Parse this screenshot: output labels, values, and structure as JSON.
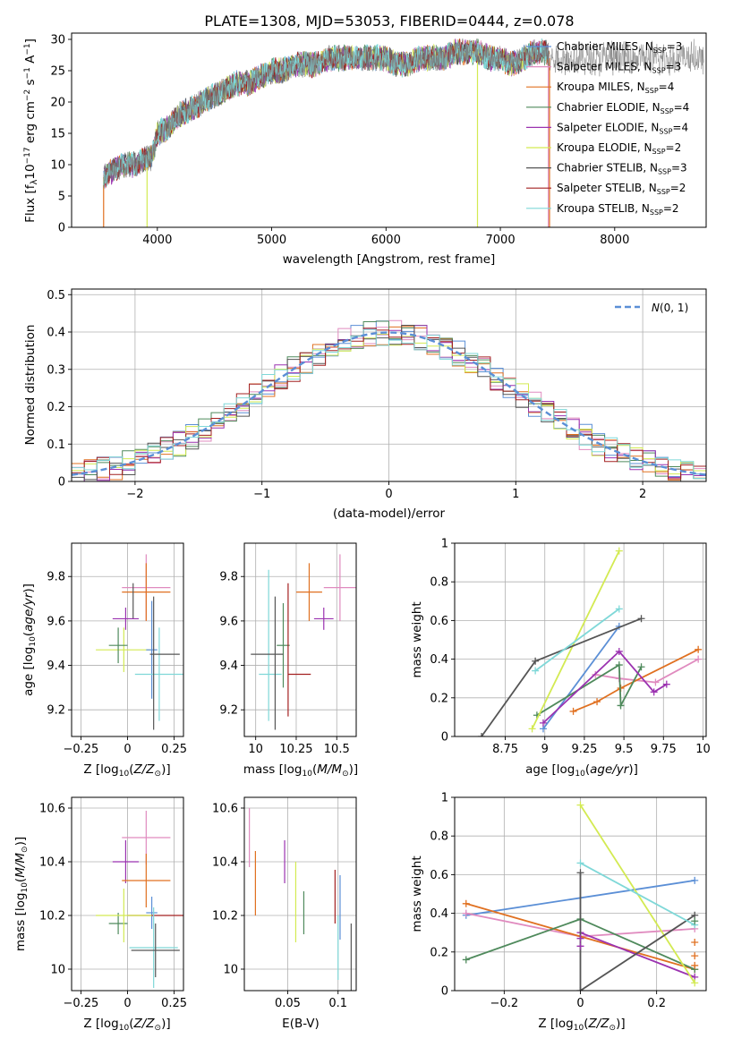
{
  "page": {
    "title": "PLATE=1308, MJD=53053, FIBERID=0444, z=0.078",
    "colors": {
      "Chabrier MILES": "#5b8fd6",
      "Salpeter MILES": "#e08bbf",
      "Kroupa MILES": "#e07020",
      "Chabrier ELODIE": "#4f8a5c",
      "Salpeter ELODIE": "#9b32b0",
      "Kroupa ELODIE": "#d3ea52",
      "Chabrier STELIB": "#555555",
      "Salpeter STELIB": "#a32020",
      "Kroupa STELIB": "#7fd8d8"
    }
  },
  "chart_data": [
    {
      "id": "spectrum",
      "type": "line",
      "title": "PLATE=1308, MJD=53053, FIBERID=0444, z=0.078",
      "xlabel": "wavelength [Angstrom, rest frame]",
      "ylabel": "Flux [f_λ10^-17 erg cm^-2 s^-1 A^-1]",
      "xlim": [
        3250,
        8800
      ],
      "ylim": [
        0,
        31
      ],
      "xticks": [
        4000,
        5000,
        6000,
        7000,
        8000
      ],
      "yticks": [
        0,
        5,
        10,
        15,
        20,
        25,
        30
      ],
      "grid": false,
      "legend_placement": "top-right",
      "envelope": {
        "x": [
          3530,
          3600,
          3700,
          3800,
          3900,
          3950,
          4000,
          4100,
          4200,
          4300,
          4400,
          4500,
          4600,
          4700,
          4800,
          4900,
          5000,
          5100,
          5200,
          5300,
          5400,
          5500,
          5600,
          5700,
          5800,
          5900,
          6000,
          6100,
          6200,
          6300,
          6400,
          6500,
          6600,
          6700,
          6800,
          6900,
          7000,
          7100,
          7200,
          7300,
          7400,
          7430
        ],
        "y": [
          8,
          9,
          10,
          10,
          11,
          11,
          15,
          16,
          18,
          19,
          20,
          21,
          22,
          23,
          23,
          24,
          25,
          25,
          26,
          26,
          26,
          27,
          27,
          27,
          27,
          27,
          27,
          26,
          26,
          27,
          27,
          27,
          28,
          28,
          28,
          27,
          27,
          26,
          27,
          28,
          28,
          27
        ]
      },
      "legend": [
        {
          "label": "Chabrier MILES",
          "nssp": "3"
        },
        {
          "label": "Salpeter MILES",
          "nssp": "3"
        },
        {
          "label": "Kroupa MILES",
          "nssp": "4"
        },
        {
          "label": "Chabrier ELODIE",
          "nssp": "4"
        },
        {
          "label": "Salpeter ELODIE",
          "nssp": "4"
        },
        {
          "label": "Kroupa ELODIE",
          "nssp": "2"
        },
        {
          "label": "Chabrier STELIB",
          "nssp": "3"
        },
        {
          "label": "Salpeter STELIB",
          "nssp": "2"
        },
        {
          "label": "Kroupa STELIB",
          "nssp": "2"
        }
      ]
    },
    {
      "id": "residuals",
      "type": "histogram",
      "xlabel": "(data-model)/error",
      "ylabel": "Normed distribution",
      "xlim": [
        -2.5,
        2.5
      ],
      "ylim": [
        0,
        0.515
      ],
      "xticks": [
        -2,
        -1,
        0,
        1,
        2
      ],
      "yticks": [
        0.0,
        0.1,
        0.2,
        0.3,
        0.4,
        0.5
      ],
      "grid": true,
      "legend_placement": "top-right",
      "reference_curve": "N(0,1)",
      "bin_width": 0.1
    },
    {
      "id": "age_vs_Z",
      "type": "scatter",
      "xlabel": "Z [log10(Z/Z⊙)]",
      "ylabel": "age [log10(age/yr)]",
      "xlim": [
        -0.3,
        0.3
      ],
      "ylim": [
        9.08,
        9.95
      ],
      "xticks": [
        -0.25,
        0.0,
        0.25
      ],
      "yticks": [
        9.2,
        9.4,
        9.6,
        9.8
      ],
      "grid": true,
      "points": [
        {
          "model": "Salpeter MILES",
          "x": 0.1,
          "xerr": 0.13,
          "y": 9.75,
          "yerr": 0.15
        },
        {
          "model": "Kroupa MILES",
          "x": 0.1,
          "xerr": 0.13,
          "y": 9.73,
          "yerr": 0.13
        },
        {
          "model": "Chabrier STELIB",
          "x": 0.03,
          "xerr": 0.0,
          "y": 9.69,
          "yerr": 0.08
        },
        {
          "model": "Salpeter ELODIE",
          "x": -0.01,
          "xerr": 0.07,
          "y": 9.61,
          "yerr": 0.05
        },
        {
          "model": "Kroupa ELODIE",
          "x": -0.02,
          "xerr": 0.15,
          "y": 9.47,
          "yerr": 0.1
        },
        {
          "model": "Chabrier ELODIE",
          "x": -0.05,
          "xerr": 0.05,
          "y": 9.49,
          "yerr": 0.08
        },
        {
          "model": "Chabrier MILES",
          "x": 0.13,
          "xerr": 0.03,
          "y": 9.47,
          "yerr": 0.22
        },
        {
          "model": "Kroupa STELIB",
          "x": 0.17,
          "xerr": 0.13,
          "y": 9.36,
          "yerr": 0.21
        },
        {
          "model": "Chabrier STELIB",
          "x": 0.2,
          "xerr": 0.08,
          "y": 9.45,
          "yerr": 0.0
        },
        {
          "model": "Chabrier STELIB",
          "x": 0.14,
          "xerr": 0.0,
          "y": 9.41,
          "yerr": 0.3
        }
      ]
    },
    {
      "id": "age_vs_mass",
      "type": "scatter",
      "xlabel": "mass [log10(M/M⊙)]",
      "ylabel": "",
      "xlim": [
        9.93,
        10.62
      ],
      "ylim": [
        9.08,
        9.95
      ],
      "xticks": [
        10.0,
        10.25,
        10.5
      ],
      "yticks": [
        9.2,
        9.4,
        9.6,
        9.8
      ],
      "grid": true,
      "points": [
        {
          "model": "Salpeter MILES",
          "x": 10.52,
          "xerr": 0.1,
          "y": 9.75,
          "yerr": 0.15
        },
        {
          "model": "Kroupa MILES",
          "x": 10.33,
          "xerr": 0.08,
          "y": 9.73,
          "yerr": 0.13
        },
        {
          "model": "Salpeter ELODIE",
          "x": 10.42,
          "xerr": 0.06,
          "y": 9.61,
          "yerr": 0.05
        },
        {
          "model": "Kroupa STELIB",
          "x": 10.08,
          "xerr": 0.0,
          "y": 9.49,
          "yerr": 0.34
        },
        {
          "model": "Chabrier ELODIE",
          "x": 10.17,
          "xerr": 0.04,
          "y": 9.49,
          "yerr": 0.19
        },
        {
          "model": "Salpeter STELIB",
          "x": 10.2,
          "xerr": 0.0,
          "y": 9.47,
          "yerr": 0.3
        },
        {
          "model": "Chabrier STELIB",
          "x": 10.07,
          "xerr": 0.1,
          "y": 9.45,
          "yerr": 0.0
        },
        {
          "model": "Kroupa STELIB",
          "x": 10.09,
          "xerr": 0.07,
          "y": 9.36,
          "yerr": 0.0
        },
        {
          "model": "Salpeter STELIB",
          "x": 10.27,
          "xerr": 0.07,
          "y": 9.36,
          "yerr": 0.0
        },
        {
          "model": "Chabrier STELIB",
          "x": 10.12,
          "xerr": 0.0,
          "y": 9.41,
          "yerr": 0.3
        }
      ]
    },
    {
      "id": "mass_weight_vs_age",
      "type": "line",
      "xlabel": "age [log10(age/yr)]",
      "ylabel": "mass weight",
      "xlim": [
        8.43,
        10.02
      ],
      "ylim": [
        0,
        1
      ],
      "xticks": [
        8.75,
        9.0,
        9.25,
        9.5,
        9.75,
        10.0
      ],
      "yticks": [
        0.0,
        0.2,
        0.4,
        0.6,
        0.8,
        1.0
      ],
      "grid": true,
      "series": [
        {
          "model": "Chabrier MILES",
          "x": [
            8.99,
            9.47
          ],
          "y": [
            0.04,
            0.57
          ]
        },
        {
          "model": "Salpeter MILES",
          "x": [
            9.32,
            9.47,
            9.7,
            9.97
          ],
          "y": [
            0.32,
            0.3,
            0.28,
            0.4
          ]
        },
        {
          "model": "Kroupa MILES",
          "x": [
            9.18,
            9.33,
            9.48,
            9.97
          ],
          "y": [
            0.13,
            0.18,
            0.25,
            0.45
          ]
        },
        {
          "model": "Chabrier ELODIE",
          "x": [
            8.95,
            9.47,
            9.48,
            9.61
          ],
          "y": [
            0.11,
            0.37,
            0.16,
            0.36
          ]
        },
        {
          "model": "Salpeter ELODIE",
          "x": [
            8.99,
            9.47,
            9.69,
            9.77
          ],
          "y": [
            0.07,
            0.44,
            0.23,
            0.27
          ]
        },
        {
          "model": "Kroupa ELODIE",
          "x": [
            8.92,
            9.47
          ],
          "y": [
            0.04,
            0.96
          ]
        },
        {
          "model": "Chabrier STELIB",
          "x": [
            8.6,
            8.94,
            9.61
          ],
          "y": [
            0.0,
            0.39,
            0.61
          ]
        },
        {
          "model": "Salpeter STELIB",
          "x": [],
          "y": []
        },
        {
          "model": "Kroupa STELIB",
          "x": [
            8.94,
            9.47
          ],
          "y": [
            0.34,
            0.66
          ]
        }
      ]
    },
    {
      "id": "mass_vs_Z",
      "type": "scatter",
      "xlabel": "Z [log10(Z/Z⊙)]",
      "ylabel": "mass [log10(M/M⊙)]",
      "xlim": [
        -0.3,
        0.3
      ],
      "ylim": [
        9.92,
        10.64
      ],
      "xticks": [
        -0.25,
        0.0,
        0.25
      ],
      "yticks": [
        10.0,
        10.2,
        10.4,
        10.6
      ],
      "grid": true,
      "points": [
        {
          "model": "Salpeter MILES",
          "x": 0.1,
          "xerr": 0.13,
          "y": 10.49,
          "yerr": 0.1
        },
        {
          "model": "Salpeter ELODIE",
          "x": -0.01,
          "xerr": 0.07,
          "y": 10.4,
          "yerr": 0.08
        },
        {
          "model": "Kroupa MILES",
          "x": 0.1,
          "xerr": 0.13,
          "y": 10.33,
          "yerr": 0.1
        },
        {
          "model": "Chabrier MILES",
          "x": 0.13,
          "xerr": 0.03,
          "y": 10.21,
          "yerr": 0.06
        },
        {
          "model": "Chabrier ELODIE",
          "x": -0.05,
          "xerr": 0.05,
          "y": 10.17,
          "yerr": 0.04
        },
        {
          "model": "Salpeter STELIB",
          "x": 0.15,
          "xerr": 0.15,
          "y": 10.2,
          "yerr": 0.0
        },
        {
          "model": "Kroupa ELODIE",
          "x": -0.02,
          "xerr": 0.15,
          "y": 10.2,
          "yerr": 0.1
        },
        {
          "model": "Kroupa STELIB",
          "x": 0.14,
          "xerr": 0.13,
          "y": 10.08,
          "yerr": 0.15
        },
        {
          "model": "Chabrier STELIB",
          "x": 0.15,
          "xerr": 0.13,
          "y": 10.07,
          "yerr": 0.1
        }
      ]
    },
    {
      "id": "mass_vs_ebv",
      "type": "scatter",
      "xlabel": "E(B-V)",
      "ylabel": "",
      "xlim": [
        0.007,
        0.118
      ],
      "ylim": [
        9.92,
        10.64
      ],
      "xticks": [
        0.05,
        0.1
      ],
      "yticks": [
        10.0,
        10.2,
        10.4,
        10.6
      ],
      "grid": true,
      "points": [
        {
          "model": "Salpeter MILES",
          "x": 0.012,
          "y": 10.49,
          "yerr": 0.11
        },
        {
          "model": "Kroupa MILES",
          "x": 0.018,
          "y": 10.32,
          "yerr": 0.12
        },
        {
          "model": "Salpeter ELODIE",
          "x": 0.047,
          "y": 10.4,
          "yerr": 0.08
        },
        {
          "model": "Kroupa ELODIE",
          "x": 0.058,
          "y": 10.25,
          "yerr": 0.15
        },
        {
          "model": "Chabrier ELODIE",
          "x": 0.066,
          "y": 10.21,
          "yerr": 0.08
        },
        {
          "model": "Salpeter STELIB",
          "x": 0.097,
          "y": 10.27,
          "yerr": 0.1
        },
        {
          "model": "Chabrier MILES",
          "x": 0.102,
          "y": 10.23,
          "yerr": 0.12
        },
        {
          "model": "Kroupa STELIB",
          "x": 0.1,
          "y": 10.08,
          "yerr": 0.12
        },
        {
          "model": "Chabrier STELIB",
          "x": 0.113,
          "y": 10.01,
          "yerr": 0.16
        }
      ]
    },
    {
      "id": "mass_weight_vs_Z",
      "type": "line",
      "xlabel": "Z [log10(Z/Z⊙)]",
      "ylabel": "mass weight",
      "xlim": [
        -0.33,
        0.33
      ],
      "ylim": [
        0,
        1
      ],
      "xticks": [
        -0.2,
        0.0,
        0.2
      ],
      "yticks": [
        0.0,
        0.2,
        0.4,
        0.6,
        0.8,
        1.0
      ],
      "grid": true,
      "series": [
        {
          "model": "Chabrier MILES",
          "x": [
            -0.3,
            0.3
          ],
          "y": [
            0.39,
            0.57
          ]
        },
        {
          "model": "Salpeter MILES",
          "x": [
            -0.3,
            0.0,
            0.3
          ],
          "y": [
            0.4,
            0.28,
            0.32
          ]
        },
        {
          "model": "Kroupa MILES",
          "x": [
            -0.3,
            0.3
          ],
          "y": [
            0.45,
            0.11
          ]
        },
        {
          "model": "Chabrier ELODIE",
          "x": [
            -0.3,
            0.0,
            0.3
          ],
          "y": [
            0.16,
            0.37,
            0.11
          ]
        },
        {
          "model": "Salpeter ELODIE",
          "x": [
            0.0,
            0.3
          ],
          "y": [
            0.3,
            0.07
          ]
        },
        {
          "model": "Kroupa ELODIE",
          "x": [
            0.0,
            0.3
          ],
          "y": [
            0.96,
            0.04
          ]
        },
        {
          "model": "Chabrier STELIB",
          "x": [
            0.0,
            0.0,
            0.3
          ],
          "y": [
            0.61,
            0.0,
            0.39
          ]
        },
        {
          "model": "Salpeter STELIB",
          "x": [],
          "y": []
        },
        {
          "model": "Kroupa STELIB",
          "x": [
            0.0,
            0.3
          ],
          "y": [
            0.66,
            0.34
          ]
        }
      ],
      "extra_ticks": [
        {
          "model": "Kroupa MILES",
          "x": 0.3,
          "y": [
            0.25,
            0.18,
            0.13
          ]
        },
        {
          "model": "Salpeter ELODIE",
          "x": 0.0,
          "y": [
            0.23,
            0.27
          ]
        },
        {
          "model": "Chabrier ELODIE",
          "x": 0.3,
          "y": [
            0.36
          ]
        }
      ]
    }
  ]
}
